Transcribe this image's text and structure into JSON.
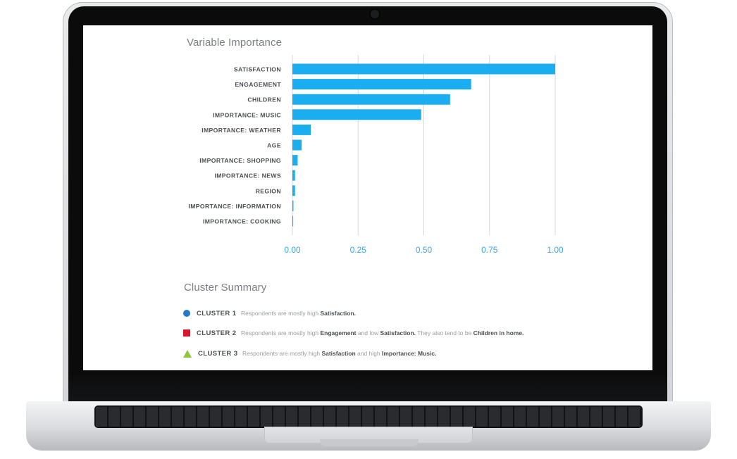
{
  "variable_importance": {
    "title": "Variable Importance"
  },
  "chart_data": {
    "type": "bar",
    "orientation": "horizontal",
    "title": "Variable Importance",
    "categories": [
      "SATISFACTION",
      "ENGAGEMENT",
      "CHILDREN",
      "IMPORTANCE: MUSIC",
      "IMPORTANCE: WEATHER",
      "AGE",
      "IMPORTANCE: SHOPPING",
      "IMPORTANCE: NEWS",
      "REGION",
      "IMPORTANCE: INFORMATION",
      "IMPORTANCE: COOKING"
    ],
    "values": [
      1.0,
      0.68,
      0.6,
      0.49,
      0.07,
      0.035,
      0.02,
      0.01,
      0.01,
      0.004,
      0.003
    ],
    "xlim": [
      0,
      1
    ],
    "x_ticks": [
      "0.00",
      "0.25",
      "0.50",
      "0.75",
      "1.00"
    ],
    "grid": "vertical",
    "bar_color": "#1aaef0",
    "tick_color": "#38a9e3"
  },
  "cluster_summary": {
    "title": "Cluster Summary",
    "clusters": [
      {
        "name": "CLUSTER 1",
        "marker": "circle",
        "color": "#2479c9",
        "parts": [
          {
            "t": "Respondents are mostly high ",
            "b": false
          },
          {
            "t": "Satisfaction.",
            "b": true
          }
        ]
      },
      {
        "name": "CLUSTER 2",
        "marker": "square",
        "color": "#d7182a",
        "parts": [
          {
            "t": "Respondents are mostly high ",
            "b": false
          },
          {
            "t": "Engagement",
            "b": true
          },
          {
            "t": " and low ",
            "b": false
          },
          {
            "t": "Satisfaction.",
            "b": true
          },
          {
            "t": " They also tend to be ",
            "b": false
          },
          {
            "t": "Children in home.",
            "b": true
          }
        ]
      },
      {
        "name": "CLUSTER 3",
        "marker": "triangle",
        "color": "#8cc63f",
        "parts": [
          {
            "t": "Respondents are mostly high ",
            "b": false
          },
          {
            "t": "Satisfaction",
            "b": true
          },
          {
            "t": " and high ",
            "b": false
          },
          {
            "t": "Importance: Music.",
            "b": true
          }
        ]
      }
    ]
  }
}
